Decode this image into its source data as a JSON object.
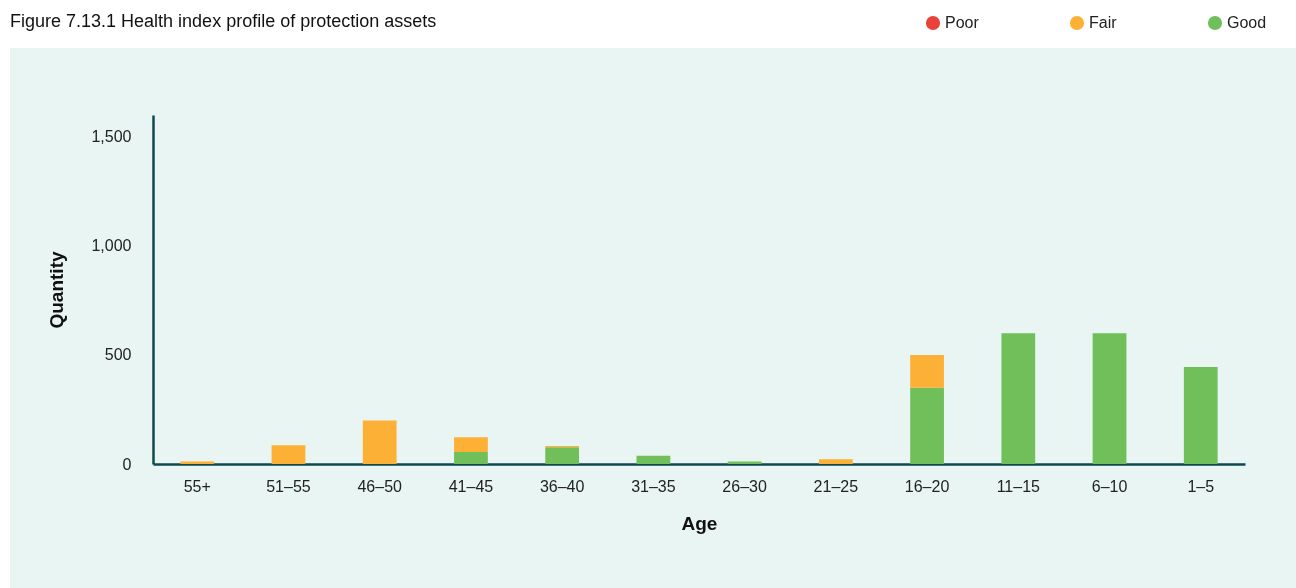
{
  "chart_data": {
    "type": "bar",
    "title": "Figure 7.13.1 Health index profile of protection assets",
    "xlabel": "Age",
    "ylabel": "Quantity",
    "categories": [
      "55+",
      "51–55",
      "46–50",
      "41–45",
      "36–40",
      "31–35",
      "26–30",
      "21–25",
      "16–20",
      "11–15",
      "6–10",
      "1–5"
    ],
    "stacked": true,
    "series": [
      {
        "name": "Good",
        "color": "#70bf5a",
        "values": [
          0,
          0,
          0,
          55,
          77,
          38,
          12,
          0,
          350,
          600,
          600,
          445
        ]
      },
      {
        "name": "Fair",
        "color": "#fcb036",
        "values": [
          12,
          86,
          200,
          68,
          5,
          0,
          0,
          22,
          150,
          0,
          0,
          0
        ]
      },
      {
        "name": "Poor",
        "color": "#e8423a",
        "values": [
          0,
          0,
          0,
          0,
          0,
          0,
          0,
          0,
          0,
          0,
          0,
          0
        ]
      }
    ],
    "ylim": [
      0,
      1600
    ],
    "yticks": [
      0,
      500,
      {
        "value": 1000,
        "label": "1,000"
      },
      {
        "value": 1500,
        "label": "1,500"
      }
    ],
    "grid": false,
    "legend": "top right"
  }
}
